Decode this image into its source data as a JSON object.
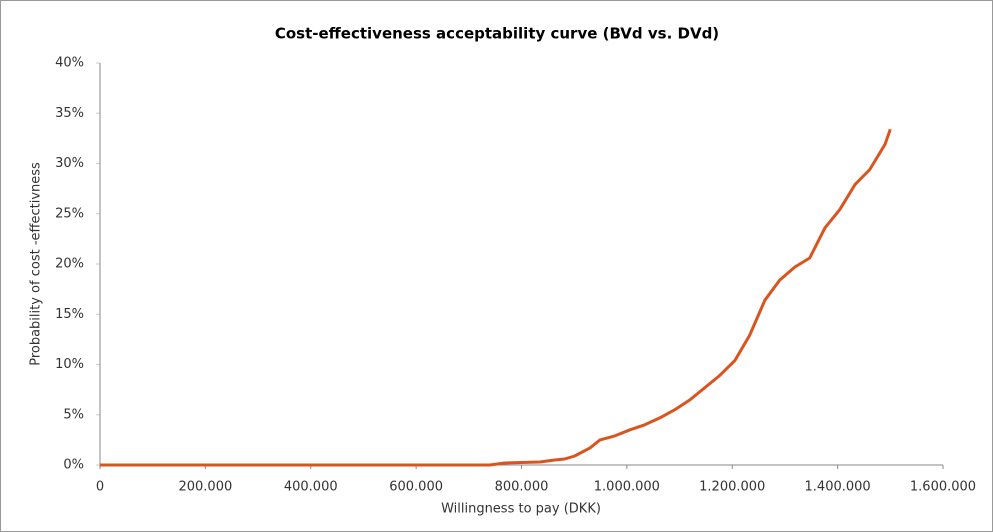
{
  "chart_data": {
    "type": "line",
    "title": "Cost-effectiveness acceptability curve (BVd vs. DVd)",
    "xlabel": "Willingness to pay (DKK)",
    "ylabel": "Probability of cost -effectivness",
    "x": [
      0,
      740000,
      768000,
      835000,
      863000,
      882000,
      901000,
      930000,
      949000,
      977000,
      1006000,
      1034000,
      1063000,
      1091000,
      1120000,
      1148000,
      1176000,
      1205000,
      1233000,
      1262000,
      1290000,
      1319000,
      1347000,
      1376000,
      1404000,
      1433000,
      1461000,
      1490000,
      1500000
    ],
    "series": [
      {
        "name": "BVd vs. DVd",
        "color": "#d9541e",
        "values": [
          0,
          0,
          0.2,
          0.3,
          0.5,
          0.6,
          0.9,
          1.7,
          2.5,
          2.9,
          3.5,
          4.0,
          4.7,
          5.5,
          6.5,
          7.7,
          8.9,
          10.4,
          12.9,
          16.4,
          18.4,
          19.7,
          20.6,
          23.6,
          25.4,
          27.9,
          29.4,
          31.9,
          33.4
        ]
      }
    ],
    "xlim": [
      0,
      1600000
    ],
    "xticks": [
      0,
      {
        "value": 200000,
        "label": "200.000"
      },
      {
        "value": 400000,
        "label": "400.000"
      },
      {
        "value": 600000,
        "label": "600.000"
      },
      {
        "value": 800000,
        "label": "800.000"
      },
      {
        "value": 1000000,
        "label": "1.000.000"
      },
      {
        "value": 1200000,
        "label": "1.200.000"
      },
      {
        "value": 1400000,
        "label": "1.400.000"
      },
      {
        "value": 1600000,
        "label": "1.600.000"
      }
    ],
    "ylim": [
      0,
      40
    ],
    "yticks": [
      {
        "value": 0,
        "label": "0%"
      },
      {
        "value": 5,
        "label": "5%"
      },
      {
        "value": 10,
        "label": "10%"
      },
      {
        "value": 15,
        "label": "15%"
      },
      {
        "value": 20,
        "label": "20%"
      },
      {
        "value": 25,
        "label": "25%"
      },
      {
        "value": 30,
        "label": "30%"
      },
      {
        "value": 35,
        "label": "35%"
      },
      {
        "value": 40,
        "label": "40%"
      }
    ],
    "grid": false
  }
}
